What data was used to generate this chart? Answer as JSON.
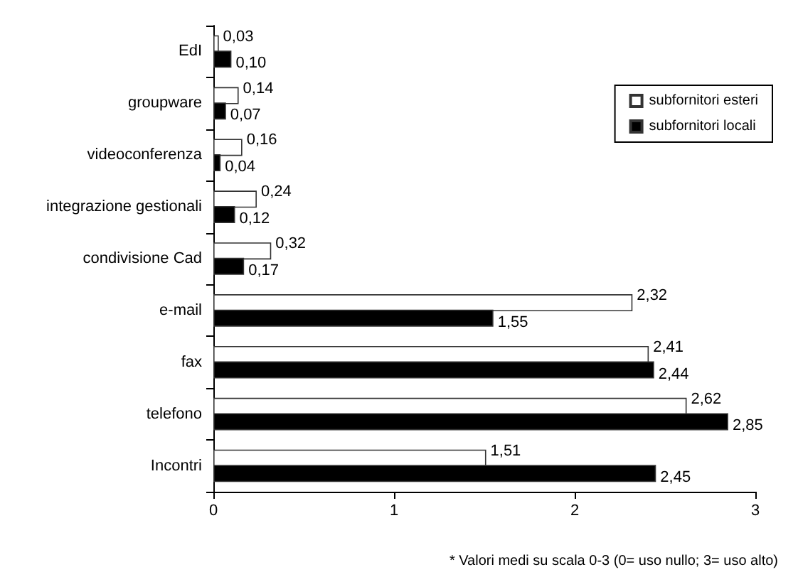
{
  "chart_data": {
    "type": "bar",
    "orientation": "horizontal",
    "categories": [
      "EdI",
      "groupware",
      "videoconferenza",
      "integrazione gestionali",
      "condivisione Cad",
      "e-mail",
      "fax",
      "telefono",
      "Incontri"
    ],
    "series": [
      {
        "name": "subfornitori esteri",
        "color": "#ffffff",
        "values": [
          0.03,
          0.14,
          0.16,
          0.24,
          0.32,
          2.32,
          2.41,
          2.62,
          1.51
        ],
        "value_labels": [
          "0,03",
          "0,14",
          "0,16",
          "0,24",
          "0,32",
          "2,32",
          "2,41",
          "2,62",
          "1,51"
        ]
      },
      {
        "name": "subfornitori locali",
        "color": "#000000",
        "values": [
          0.1,
          0.07,
          0.04,
          0.12,
          0.17,
          1.55,
          2.44,
          2.85,
          2.45
        ],
        "value_labels": [
          "0,10",
          "0,07",
          "0,04",
          "0,12",
          "0,17",
          "1,55",
          "2,44",
          "2,85",
          "2,45"
        ]
      }
    ],
    "xlim": [
      0,
      3
    ],
    "xticks": [
      0,
      1,
      2,
      3
    ],
    "grid": false,
    "legend": "top right",
    "annotations": [
      "* Valori medi su scala 0-3 (0= uso nullo; 3= uso alto)"
    ]
  }
}
